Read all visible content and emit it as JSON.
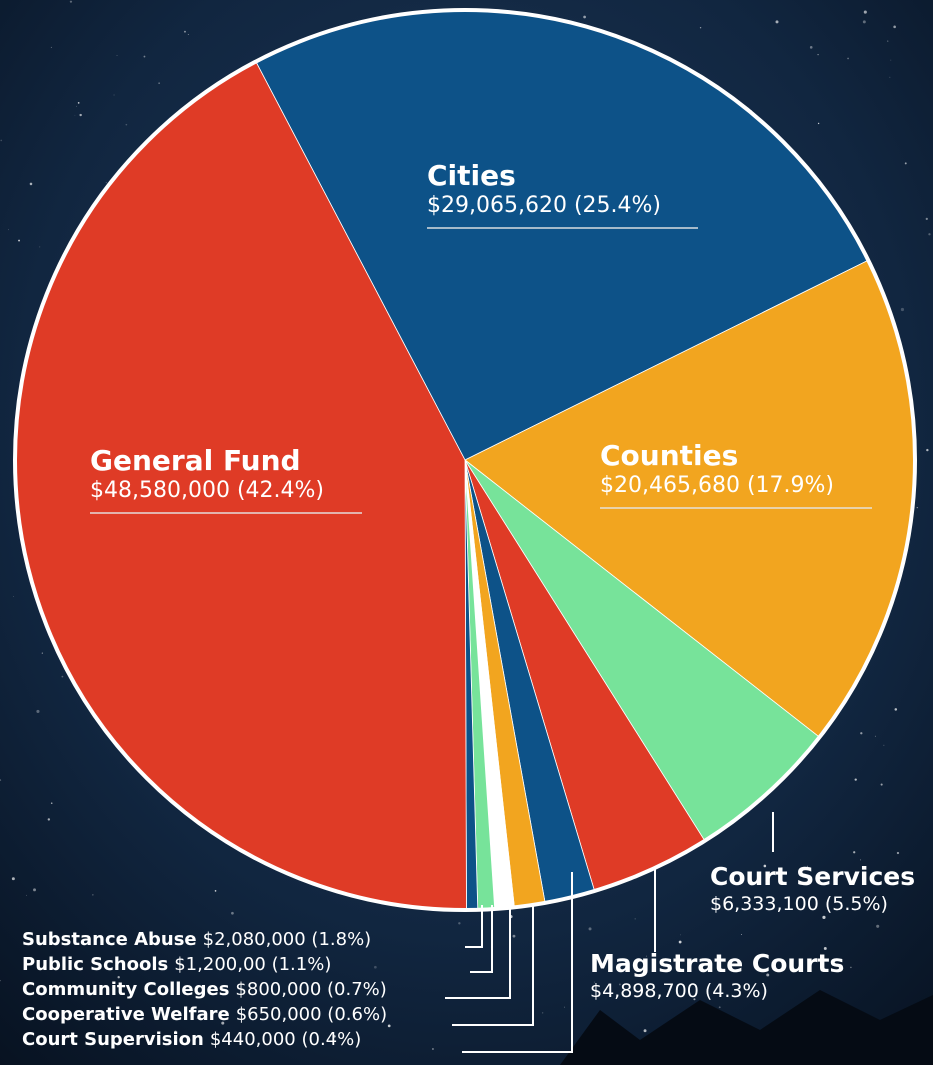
{
  "chart_data": {
    "type": "pie",
    "categories": [
      "Cities",
      "Counties",
      "Court Services",
      "Magistrate Courts",
      "Substance Abuse",
      "Public Schools",
      "Community Colleges",
      "Cooperative Welfare",
      "Court Supervision",
      "General Fund"
    ],
    "values": [
      25.4,
      17.9,
      5.5,
      4.3,
      1.8,
      1.1,
      0.7,
      0.6,
      0.4,
      42.4
    ],
    "value_labels": [
      "$29,065,620 (25.4%)",
      "$20,465,680 (17.9%)",
      "$6,333,100 (5.5%)",
      "$4,898,700 (4.3%)",
      "$2,080,000 (1.8%)",
      "$1,200,00 (1.1%)",
      "$800,000 (0.7%)",
      "$650,000 (0.6%)",
      "$440,000 (0.4%)",
      "$48,580,000 (42.4%)"
    ],
    "colors": [
      "#0d5288",
      "#f2a51f",
      "#77e39a",
      "#df3b26",
      "#0d5288",
      "#f2a51f",
      "#ffffff",
      "#77e39a",
      "#0d5288",
      "#df3b26"
    ]
  }
}
